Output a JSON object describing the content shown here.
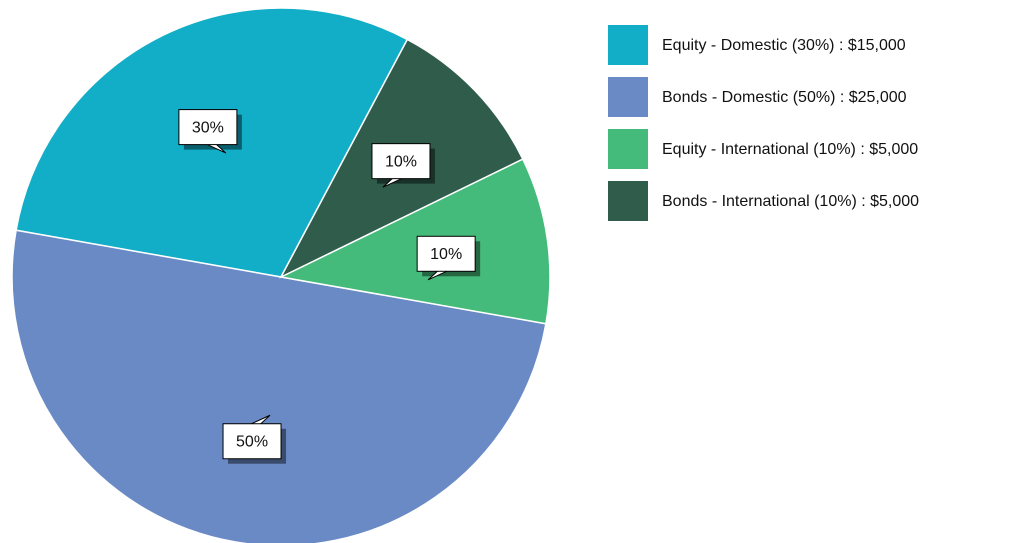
{
  "chart_data": {
    "type": "pie",
    "labels": [
      "Equity - Domestic (30%) : $15,000",
      "Bonds - Domestic (50%) : $25,000",
      "Equity - International (10%) : $5,000",
      "Bonds - International (10%) : $5,000"
    ],
    "values": [
      30,
      50,
      10,
      10
    ],
    "value_labels": [
      "30%",
      "50%",
      "10%",
      "10%"
    ],
    "colors": [
      "#12aec8",
      "#6a8ac6",
      "#45bb7b",
      "#2f5c4b"
    ],
    "legend": "right"
  }
}
